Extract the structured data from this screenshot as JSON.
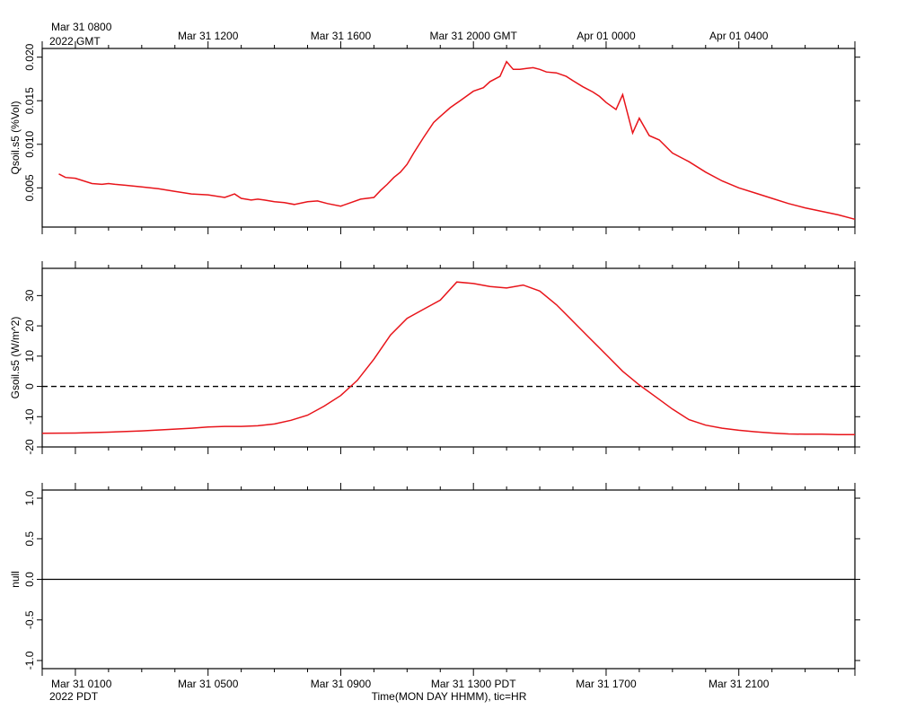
{
  "chart_data": [
    {
      "type": "line",
      "ylabel": "Qsoil.s5 (%Vol)",
      "ylim": [
        0.0005,
        0.021
      ],
      "yticks": [
        0.005,
        0.01,
        0.015,
        0.02
      ],
      "ytick_labels": [
        "0.005",
        "0.010",
        "0.015",
        "0.020"
      ],
      "zero_line": "none",
      "series": [
        {
          "color": "#e8141a",
          "x": [
            -0.5,
            -0.3,
            0.0,
            0.5,
            0.8,
            1.0,
            1.2,
            1.5,
            2.0,
            2.5,
            3.0,
            3.5,
            4.0,
            4.5,
            4.8,
            5.0,
            5.3,
            5.5,
            5.7,
            6.0,
            6.3,
            6.6,
            7.0,
            7.3,
            7.6,
            8.0,
            8.3,
            8.6,
            9.0,
            9.2,
            9.4,
            9.6,
            9.8,
            10.0,
            10.2,
            10.5,
            10.8,
            11.0,
            11.3,
            11.6,
            12.0,
            12.3,
            12.5,
            12.8,
            13.0,
            13.2,
            13.4,
            13.6,
            13.8,
            14.0,
            14.2,
            14.5,
            14.8,
            15.0,
            15.3,
            15.6,
            15.8,
            16.0,
            16.3,
            16.5,
            16.8,
            17.0,
            17.3,
            17.6,
            18.0,
            18.5,
            19.0,
            19.5,
            20.0,
            20.5,
            21.0,
            21.5,
            22.0,
            22.5,
            23.0,
            23.5,
            23.5
          ],
          "values": [
            0.0066,
            0.0062,
            0.0061,
            0.0055,
            0.0054,
            0.0055,
            0.0054,
            0.0053,
            0.0051,
            0.0049,
            0.0046,
            0.0043,
            0.0042,
            0.0039,
            0.0043,
            0.0038,
            0.0036,
            0.0037,
            0.0036,
            0.0034,
            0.0033,
            0.0031,
            0.0034,
            0.0035,
            0.0032,
            0.0029,
            0.0033,
            0.0037,
            0.0039,
            0.0047,
            0.0054,
            0.0062,
            0.0068,
            0.0077,
            0.009,
            0.0108,
            0.0125,
            0.0132,
            0.0142,
            0.015,
            0.0161,
            0.0165,
            0.0172,
            0.0178,
            0.0195,
            0.0186,
            0.0186,
            0.0187,
            0.0188,
            0.0186,
            0.0183,
            0.0182,
            0.0178,
            0.0173,
            0.0166,
            0.016,
            0.0155,
            0.0148,
            0.014,
            0.0157,
            0.0113,
            0.013,
            0.011,
            0.0105,
            0.009,
            0.008,
            0.0068,
            0.0058,
            0.005,
            0.0044,
            0.0038,
            0.0032,
            0.0027,
            0.0023,
            0.0019,
            0.0014,
            0.0014
          ]
        }
      ]
    },
    {
      "type": "line",
      "ylabel": "Gsoil.s5 (W/m^2)",
      "ylim": [
        -20,
        39
      ],
      "yticks": [
        -20,
        -10,
        0,
        10,
        20,
        30
      ],
      "ytick_labels": [
        "-20",
        "-10",
        "0",
        "10",
        "20",
        "30"
      ],
      "zero_line": "dashed",
      "series": [
        {
          "color": "#e8141a",
          "x": [
            -1.0,
            0.0,
            1.0,
            2.0,
            3.0,
            3.5,
            4.0,
            4.5,
            5.0,
            5.5,
            6.0,
            6.5,
            7.0,
            7.5,
            8.0,
            8.5,
            9.0,
            9.5,
            10.0,
            10.5,
            11.0,
            11.5,
            12.0,
            12.5,
            13.0,
            13.5,
            14.0,
            14.5,
            15.0,
            15.5,
            16.0,
            16.5,
            17.0,
            17.5,
            18.0,
            18.5,
            19.0,
            19.5,
            20.0,
            20.5,
            21.0,
            21.5,
            22.0,
            22.5,
            23.0,
            23.5
          ],
          "values": [
            -15.5,
            -15.4,
            -15.1,
            -14.7,
            -14.1,
            -13.8,
            -13.4,
            -13.2,
            -13.2,
            -13.0,
            -12.4,
            -11.2,
            -9.5,
            -6.5,
            -3.0,
            2.0,
            9.0,
            17.0,
            22.5,
            25.5,
            28.5,
            34.5,
            34.0,
            33.0,
            32.5,
            33.5,
            31.5,
            27.0,
            21.5,
            16.0,
            10.5,
            5.0,
            0.5,
            -3.5,
            -7.5,
            -11.0,
            -12.8,
            -13.8,
            -14.5,
            -15.0,
            -15.4,
            -15.7,
            -15.8,
            -15.8,
            -15.9,
            -15.9
          ]
        }
      ]
    },
    {
      "type": "line",
      "ylabel": "null",
      "ylim": [
        -1.1,
        1.1
      ],
      "yticks": [
        -1.0,
        -0.5,
        0.0,
        0.5,
        1.0
      ],
      "ytick_labels": [
        "-1.0",
        "-0.5",
        "0.0",
        "0.5",
        "1.0"
      ],
      "zero_line": "solid",
      "series": []
    }
  ],
  "time_axis": {
    "xlim": [
      -1.0,
      23.5
    ],
    "unit": "hours from Mar 31 0100 PDT",
    "gmt_labels": [
      {
        "x": 0,
        "text": "Mar 31 0800"
      },
      {
        "x": 4,
        "text": "Mar 31 1200"
      },
      {
        "x": 8,
        "text": "Mar 31 1600"
      },
      {
        "x": 12,
        "text": "Mar 31 2000 GMT"
      },
      {
        "x": 16,
        "text": "Apr 01 0000"
      },
      {
        "x": 20,
        "text": "Apr 01 0400"
      }
    ],
    "gmt_year": "2022 GMT",
    "pdt_labels": [
      {
        "x": 0,
        "text": "Mar 31 0100"
      },
      {
        "x": 4,
        "text": "Mar 31 0500"
      },
      {
        "x": 8,
        "text": "Mar 31 0900"
      },
      {
        "x": 12,
        "text": "Mar 31 1300 PDT"
      },
      {
        "x": 16,
        "text": "Mar 31 1700"
      },
      {
        "x": 20,
        "text": "Mar 31 2100"
      }
    ],
    "pdt_year": "2022 PDT",
    "xlabel": "Time(MON DAY HHMM), tic=HR"
  }
}
